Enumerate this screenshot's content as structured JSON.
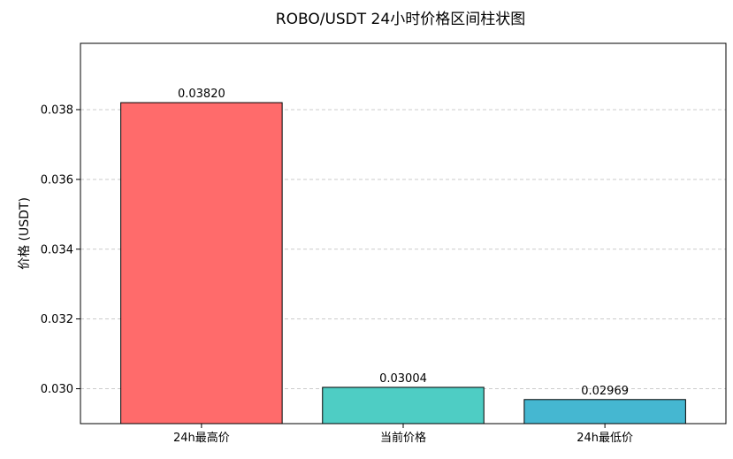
{
  "chart_data": {
    "type": "bar",
    "title": "ROBO/USDT 24小时价格区间柱状图",
    "xlabel": "",
    "ylabel": "价格 (USDT)",
    "categories": [
      "24h最高价",
      "当前价格",
      "24h最低价"
    ],
    "values": [
      0.0382,
      0.03004,
      0.02969
    ],
    "value_labels": [
      "0.03820",
      "0.03004",
      "0.02969"
    ],
    "colors": [
      "#ff6b6b",
      "#4ecdc4",
      "#45b7d1"
    ],
    "ylim": [
      0.029,
      0.0399
    ],
    "yticks": [
      0.03,
      0.032,
      0.034,
      0.036,
      0.038
    ],
    "ytick_labels": [
      "0.030",
      "0.032",
      "0.034",
      "0.036",
      "0.038"
    ],
    "grid": "y-dashed",
    "legend": "none"
  }
}
